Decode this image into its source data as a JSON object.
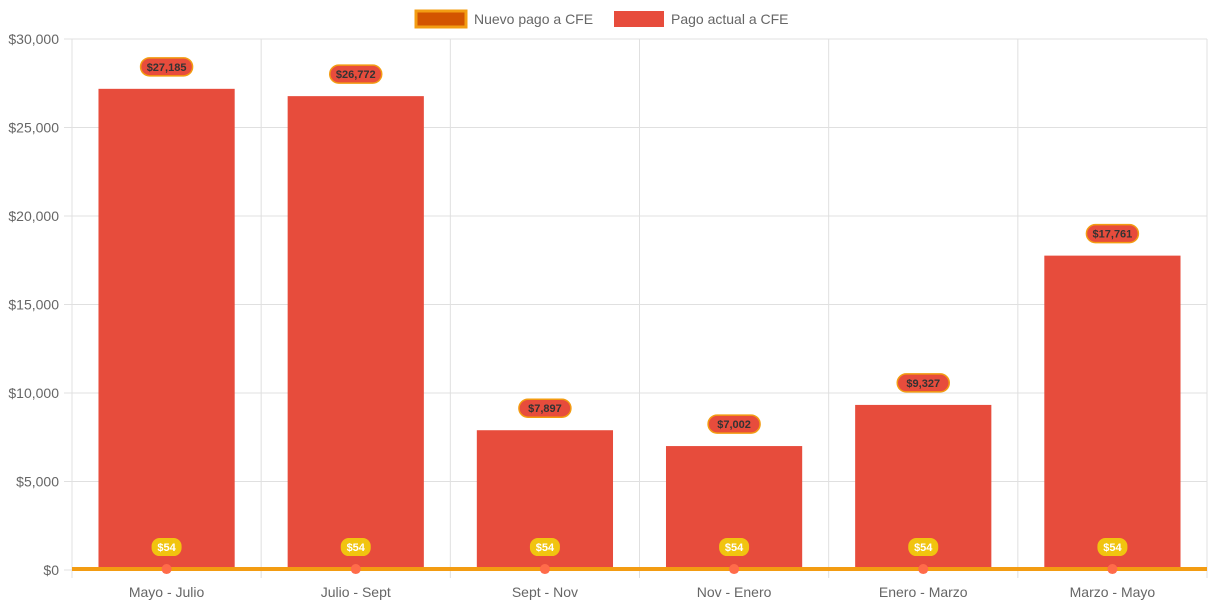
{
  "chart_data": {
    "type": "bar",
    "categories": [
      "Mayo - Julio",
      "Julio - Sept",
      "Sept - Nov",
      "Nov - Enero",
      "Enero - Marzo",
      "Marzo - Mayo"
    ],
    "series": [
      {
        "name": "Nuevo pago a CFE",
        "kind": "line",
        "values": [
          54,
          54,
          54,
          54,
          54,
          54
        ],
        "labels": [
          "$54",
          "$54",
          "$54",
          "$54",
          "$54",
          "$54"
        ]
      },
      {
        "name": "Pago actual a CFE",
        "kind": "bar",
        "values": [
          27185,
          26772,
          7897,
          7002,
          9327,
          17761
        ],
        "labels": [
          "$27,185",
          "$26,772",
          "$7,897",
          "$7,002",
          "$9,327",
          "$17,761"
        ]
      }
    ],
    "y_ticks": [
      "$0",
      "$5,000",
      "$10,000",
      "$15,000",
      "$20,000",
      "$25,000",
      "$30,000"
    ],
    "ylim": [
      0,
      30000
    ],
    "grid": true,
    "legend_position": "top-center"
  },
  "colors": {
    "bar_fill": "#e74c3c",
    "line_stroke": "#f39c12",
    "line_legend_fill": "#d35400",
    "point_fill": "#ff6b4a",
    "line_label_bg": "#f1c40f",
    "line_label_text": "#ffffff",
    "bar_label_border": "#f39c12",
    "bar_label_text": "#333333",
    "grid": "#e0e0e0",
    "axis_text": "#666666"
  }
}
